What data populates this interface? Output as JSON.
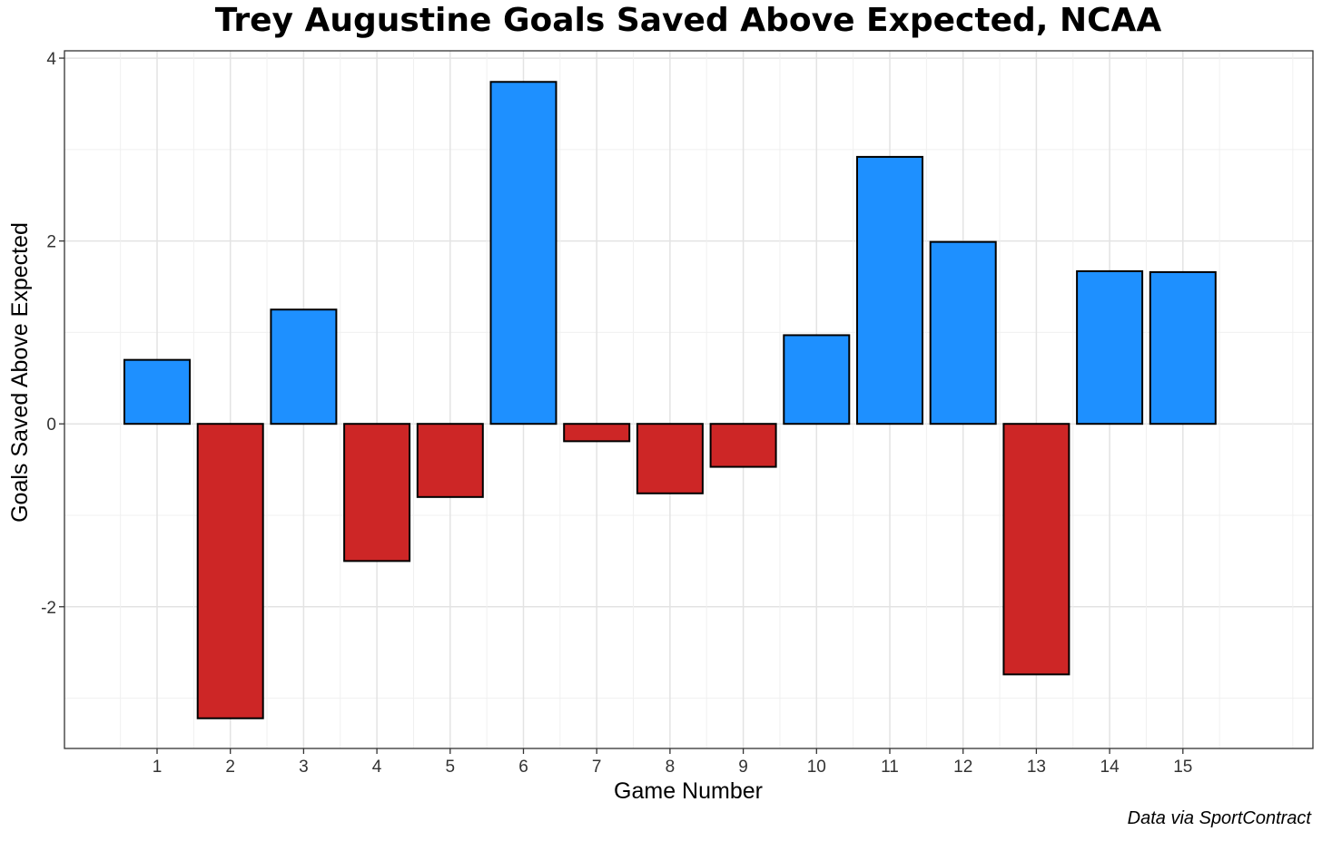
{
  "chart_data": {
    "type": "bar",
    "title": "Trey Augustine Goals Saved Above Expected, NCAA",
    "xlabel": "Game Number",
    "ylabel": "Goals Saved Above Expected",
    "caption": "Data via SportContract",
    "categories": [
      "1",
      "2",
      "3",
      "4",
      "5",
      "6",
      "7",
      "8",
      "9",
      "10",
      "11",
      "12",
      "13",
      "14",
      "15"
    ],
    "values": [
      0.7,
      -3.22,
      1.25,
      -1.5,
      -0.8,
      3.74,
      -0.19,
      -0.76,
      -0.47,
      0.97,
      2.92,
      1.99,
      -2.74,
      1.67,
      1.66
    ],
    "ylim": [
      -3.55,
      4.08
    ],
    "yticks": [
      -2,
      0,
      2,
      4
    ],
    "grid": true,
    "colors": {
      "positive": "#1E90FF",
      "negative": "#CD2626",
      "outline": "#000000"
    }
  }
}
